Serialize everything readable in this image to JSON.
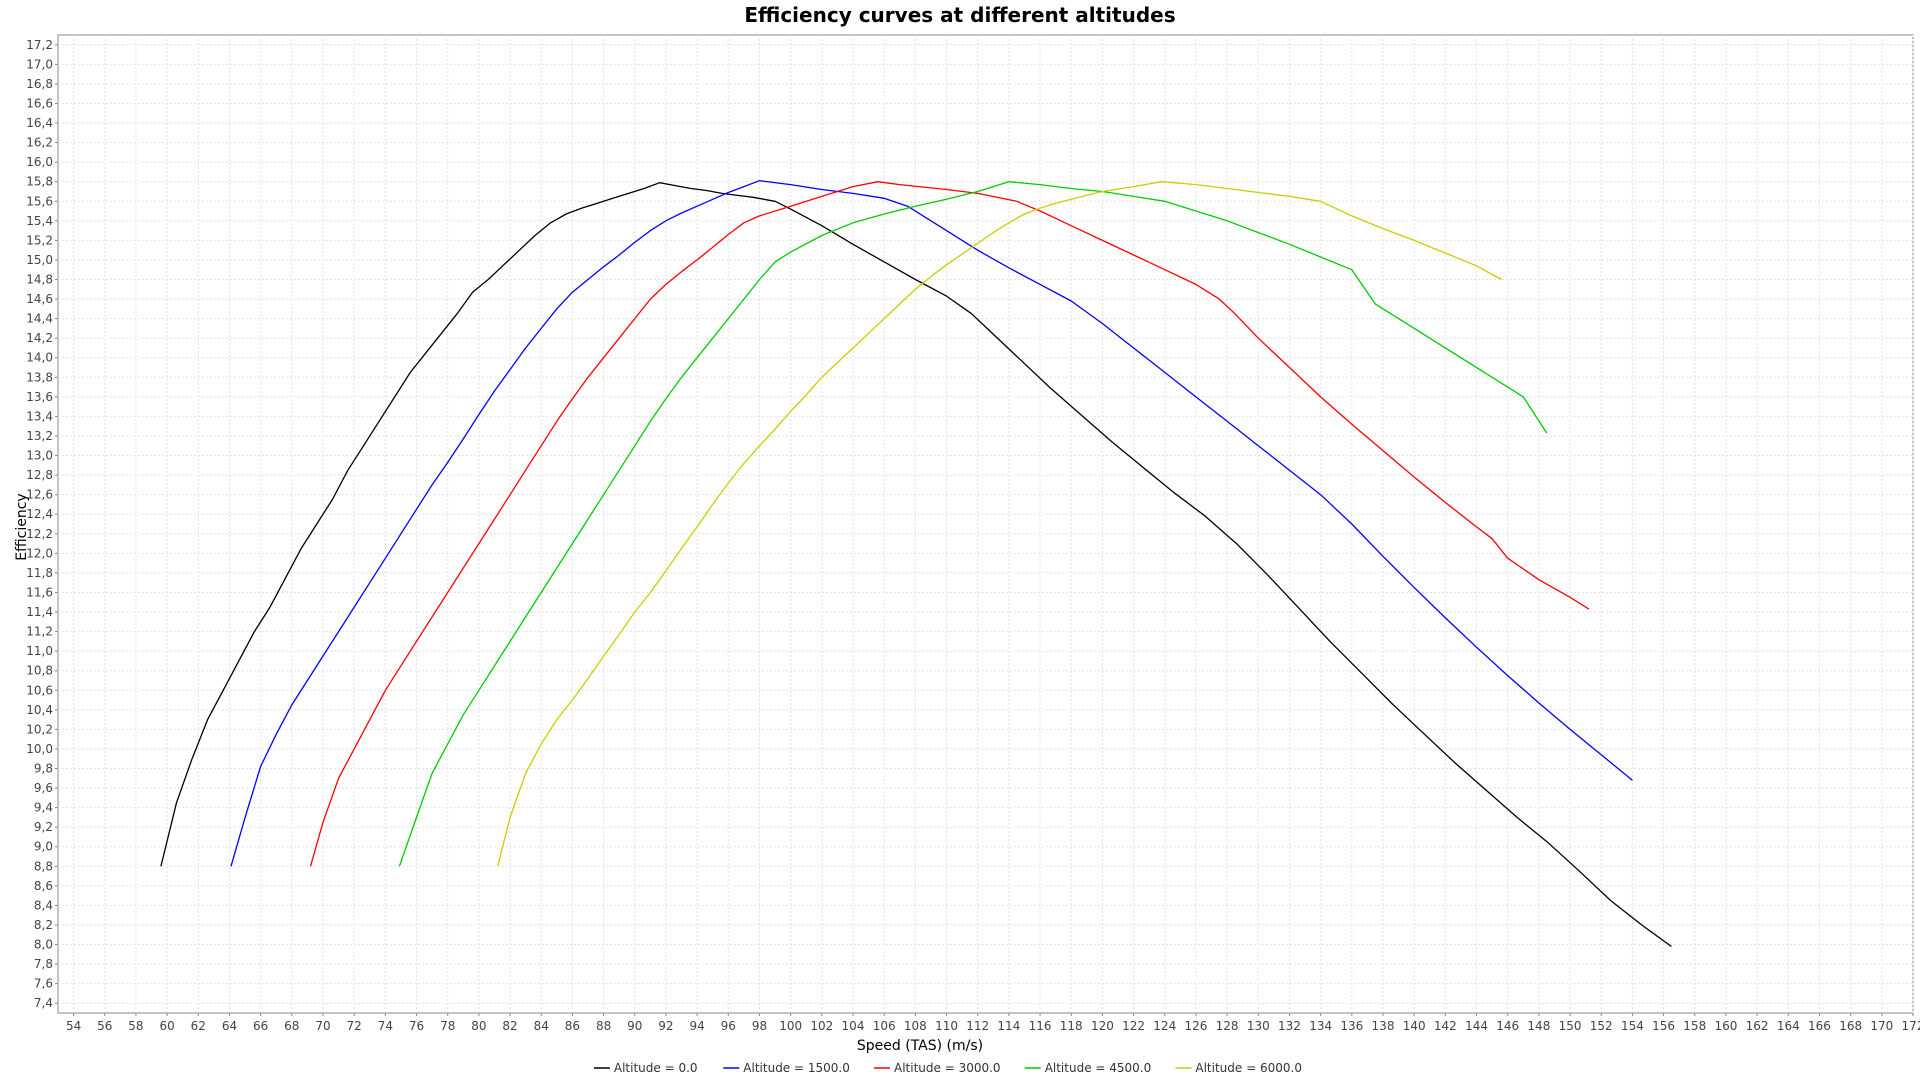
{
  "chart_data": {
    "type": "line",
    "title": "Efficiency curves at different altitudes",
    "xlabel": "Speed (TAS) (m/s)",
    "ylabel": "Efficiency",
    "xlim": [
      53,
      172
    ],
    "ylim": [
      7.3,
      17.3
    ],
    "x_tick_start": 54,
    "x_tick_end": 172,
    "x_tick_step": 2,
    "y_tick_start": 7.4,
    "y_tick_end": 17.2,
    "y_tick_step": 0.2,
    "decimal_separator": ",",
    "grid": true,
    "legend_position": "bottom-center",
    "series": [
      {
        "name": "Altitude = 0.0",
        "color": "#000000",
        "points": [
          [
            59.6,
            8.8
          ],
          [
            60.6,
            9.45
          ],
          [
            61.6,
            9.9
          ],
          [
            62.6,
            10.3
          ],
          [
            63.6,
            10.6
          ],
          [
            64.6,
            10.9
          ],
          [
            65.6,
            11.2
          ],
          [
            66.6,
            11.45
          ],
          [
            67.6,
            11.75
          ],
          [
            68.6,
            12.05
          ],
          [
            69.6,
            12.3
          ],
          [
            70.6,
            12.55
          ],
          [
            71.6,
            12.85
          ],
          [
            72.6,
            13.1
          ],
          [
            73.6,
            13.35
          ],
          [
            74.6,
            13.6
          ],
          [
            75.6,
            13.85
          ],
          [
            76.6,
            14.05
          ],
          [
            77.6,
            14.25
          ],
          [
            78.6,
            14.45
          ],
          [
            79.6,
            14.67
          ],
          [
            80.6,
            14.8
          ],
          [
            81.6,
            14.95
          ],
          [
            82.6,
            15.1
          ],
          [
            83.6,
            15.25
          ],
          [
            84.6,
            15.38
          ],
          [
            85.6,
            15.47
          ],
          [
            86.6,
            15.53
          ],
          [
            87.6,
            15.58
          ],
          [
            88.6,
            15.63
          ],
          [
            89.6,
            15.68
          ],
          [
            90.6,
            15.73
          ],
          [
            91.6,
            15.79
          ],
          [
            92.6,
            15.76
          ],
          [
            93.6,
            15.73
          ],
          [
            94.6,
            15.71
          ],
          [
            95.6,
            15.68
          ],
          [
            96.6,
            15.66
          ],
          [
            97.6,
            15.64
          ],
          [
            99.0,
            15.6
          ],
          [
            100.0,
            15.52
          ],
          [
            102.0,
            15.35
          ],
          [
            104.0,
            15.16
          ],
          [
            106.0,
            14.98
          ],
          [
            108.0,
            14.8
          ],
          [
            110.0,
            14.63
          ],
          [
            111.6,
            14.45
          ],
          [
            112.6,
            14.3
          ],
          [
            114.6,
            14.0
          ],
          [
            116.6,
            13.7
          ],
          [
            118.6,
            13.42
          ],
          [
            120.6,
            13.14
          ],
          [
            122.6,
            12.88
          ],
          [
            124.6,
            12.62
          ],
          [
            126.6,
            12.38
          ],
          [
            128.6,
            12.1
          ],
          [
            130.6,
            11.78
          ],
          [
            132.6,
            11.44
          ],
          [
            134.6,
            11.1
          ],
          [
            136.6,
            10.78
          ],
          [
            138.6,
            10.46
          ],
          [
            140.6,
            10.16
          ],
          [
            142.6,
            9.86
          ],
          [
            144.6,
            9.58
          ],
          [
            146.6,
            9.3
          ],
          [
            148.6,
            9.04
          ],
          [
            150.6,
            8.75
          ],
          [
            152.6,
            8.45
          ],
          [
            154.6,
            8.2
          ],
          [
            156.5,
            7.98
          ]
        ]
      },
      {
        "name": "Altitude = 1500.0",
        "color": "#0000ff",
        "points": [
          [
            64.1,
            8.8
          ],
          [
            65.0,
            9.3
          ],
          [
            66.0,
            9.82
          ],
          [
            67.0,
            10.15
          ],
          [
            68.0,
            10.45
          ],
          [
            69.0,
            10.7
          ],
          [
            70.0,
            10.95
          ],
          [
            71.0,
            11.2
          ],
          [
            72.0,
            11.45
          ],
          [
            73.0,
            11.7
          ],
          [
            74.0,
            11.95
          ],
          [
            75.0,
            12.2
          ],
          [
            76.0,
            12.45
          ],
          [
            77.0,
            12.7
          ],
          [
            78.0,
            12.93
          ],
          [
            79.0,
            13.17
          ],
          [
            80.0,
            13.42
          ],
          [
            81.0,
            13.66
          ],
          [
            82.0,
            13.88
          ],
          [
            83.0,
            14.1
          ],
          [
            84.0,
            14.3
          ],
          [
            85.0,
            14.5
          ],
          [
            86.0,
            14.67
          ],
          [
            87.0,
            14.8
          ],
          [
            88.0,
            14.93
          ],
          [
            89.0,
            15.05
          ],
          [
            90.0,
            15.18
          ],
          [
            91.0,
            15.3
          ],
          [
            92.0,
            15.4
          ],
          [
            93.0,
            15.48
          ],
          [
            94.0,
            15.55
          ],
          [
            95.0,
            15.62
          ],
          [
            96.0,
            15.69
          ],
          [
            97.0,
            15.75
          ],
          [
            98.0,
            15.81
          ],
          [
            100.0,
            15.77
          ],
          [
            102.0,
            15.72
          ],
          [
            104.0,
            15.68
          ],
          [
            106.0,
            15.63
          ],
          [
            107.5,
            15.55
          ],
          [
            108.5,
            15.45
          ],
          [
            110.0,
            15.3
          ],
          [
            112.0,
            15.1
          ],
          [
            114.0,
            14.92
          ],
          [
            116.0,
            14.75
          ],
          [
            118.0,
            14.58
          ],
          [
            120.0,
            14.35
          ],
          [
            122.0,
            14.1
          ],
          [
            124.0,
            13.85
          ],
          [
            126.0,
            13.6
          ],
          [
            128.0,
            13.35
          ],
          [
            130.0,
            13.1
          ],
          [
            132.0,
            12.85
          ],
          [
            134.0,
            12.6
          ],
          [
            136.0,
            12.3
          ],
          [
            138.0,
            11.97
          ],
          [
            140.0,
            11.65
          ],
          [
            142.0,
            11.34
          ],
          [
            144.0,
            11.04
          ],
          [
            146.0,
            10.75
          ],
          [
            148.0,
            10.47
          ],
          [
            150.0,
            10.2
          ],
          [
            152.0,
            9.94
          ],
          [
            154.0,
            9.68
          ]
        ]
      },
      {
        "name": "Altitude = 3000.0",
        "color": "#ff0000",
        "points": [
          [
            69.2,
            8.8
          ],
          [
            70.0,
            9.25
          ],
          [
            71.0,
            9.7
          ],
          [
            72.0,
            10.0
          ],
          [
            73.0,
            10.3
          ],
          [
            74.0,
            10.6
          ],
          [
            75.0,
            10.85
          ],
          [
            76.0,
            11.1
          ],
          [
            77.0,
            11.35
          ],
          [
            78.0,
            11.6
          ],
          [
            79.0,
            11.85
          ],
          [
            80.0,
            12.1
          ],
          [
            81.0,
            12.35
          ],
          [
            82.0,
            12.6
          ],
          [
            83.0,
            12.85
          ],
          [
            84.0,
            13.1
          ],
          [
            85.0,
            13.35
          ],
          [
            86.0,
            13.58
          ],
          [
            87.0,
            13.8
          ],
          [
            88.0,
            14.0
          ],
          [
            89.0,
            14.2
          ],
          [
            90.0,
            14.4
          ],
          [
            91.0,
            14.6
          ],
          [
            92.0,
            14.75
          ],
          [
            93.0,
            14.88
          ],
          [
            94.0,
            15.0
          ],
          [
            95.0,
            15.13
          ],
          [
            96.0,
            15.26
          ],
          [
            97.0,
            15.38
          ],
          [
            98.0,
            15.45
          ],
          [
            100.0,
            15.55
          ],
          [
            102.0,
            15.65
          ],
          [
            104.0,
            15.75
          ],
          [
            105.6,
            15.8
          ],
          [
            107.0,
            15.77
          ],
          [
            110.0,
            15.72
          ],
          [
            112.0,
            15.68
          ],
          [
            114.5,
            15.6
          ],
          [
            116.0,
            15.5
          ],
          [
            118.0,
            15.35
          ],
          [
            120.0,
            15.2
          ],
          [
            122.0,
            15.05
          ],
          [
            124.0,
            14.9
          ],
          [
            126.0,
            14.75
          ],
          [
            127.5,
            14.6
          ],
          [
            128.5,
            14.45
          ],
          [
            130.0,
            14.2
          ],
          [
            132.0,
            13.9
          ],
          [
            134.0,
            13.6
          ],
          [
            136.0,
            13.32
          ],
          [
            138.0,
            13.05
          ],
          [
            140.0,
            12.78
          ],
          [
            142.0,
            12.52
          ],
          [
            144.0,
            12.27
          ],
          [
            145.0,
            12.15
          ],
          [
            146.0,
            11.95
          ],
          [
            148.0,
            11.73
          ],
          [
            150.0,
            11.55
          ],
          [
            151.2,
            11.43
          ]
        ]
      },
      {
        "name": "Altitude = 4500.0",
        "color": "#00cc00",
        "points": [
          [
            74.9,
            8.8
          ],
          [
            76.0,
            9.3
          ],
          [
            77.0,
            9.75
          ],
          [
            78.0,
            10.05
          ],
          [
            79.0,
            10.35
          ],
          [
            80.0,
            10.6
          ],
          [
            81.0,
            10.85
          ],
          [
            82.0,
            11.1
          ],
          [
            83.0,
            11.35
          ],
          [
            84.0,
            11.6
          ],
          [
            85.0,
            11.85
          ],
          [
            86.0,
            12.1
          ],
          [
            87.0,
            12.35
          ],
          [
            88.0,
            12.6
          ],
          [
            89.0,
            12.85
          ],
          [
            90.0,
            13.1
          ],
          [
            91.0,
            13.35
          ],
          [
            92.0,
            13.58
          ],
          [
            93.0,
            13.8
          ],
          [
            94.0,
            14.0
          ],
          [
            95.0,
            14.2
          ],
          [
            96.0,
            14.4
          ],
          [
            97.0,
            14.6
          ],
          [
            98.0,
            14.8
          ],
          [
            99.0,
            14.98
          ],
          [
            100.0,
            15.08
          ],
          [
            102.0,
            15.25
          ],
          [
            104.0,
            15.38
          ],
          [
            106.0,
            15.47
          ],
          [
            108.0,
            15.55
          ],
          [
            110.0,
            15.62
          ],
          [
            112.0,
            15.7
          ],
          [
            114.0,
            15.8
          ],
          [
            116.0,
            15.77
          ],
          [
            118.0,
            15.73
          ],
          [
            120.0,
            15.7
          ],
          [
            122.0,
            15.65
          ],
          [
            124.0,
            15.6
          ],
          [
            126.0,
            15.5
          ],
          [
            128.0,
            15.4
          ],
          [
            130.0,
            15.28
          ],
          [
            132.0,
            15.16
          ],
          [
            134.0,
            15.03
          ],
          [
            136.0,
            14.9
          ],
          [
            137.5,
            14.55
          ],
          [
            139.0,
            14.4
          ],
          [
            141.0,
            14.2
          ],
          [
            143.0,
            14.0
          ],
          [
            145.0,
            13.8
          ],
          [
            147.0,
            13.6
          ],
          [
            148.5,
            13.23
          ]
        ]
      },
      {
        "name": "Altitude = 6000.0",
        "color": "#cccc00",
        "points": [
          [
            81.2,
            8.8
          ],
          [
            82.0,
            9.3
          ],
          [
            83.0,
            9.75
          ],
          [
            84.0,
            10.05
          ],
          [
            85.0,
            10.3
          ],
          [
            86.0,
            10.5
          ],
          [
            87.0,
            10.72
          ],
          [
            88.0,
            10.95
          ],
          [
            89.0,
            11.17
          ],
          [
            90.0,
            11.4
          ],
          [
            91.0,
            11.6
          ],
          [
            92.0,
            11.82
          ],
          [
            93.0,
            12.05
          ],
          [
            94.0,
            12.27
          ],
          [
            95.0,
            12.5
          ],
          [
            96.0,
            12.72
          ],
          [
            97.0,
            12.92
          ],
          [
            98.0,
            13.1
          ],
          [
            99.0,
            13.27
          ],
          [
            100.0,
            13.45
          ],
          [
            101.0,
            13.62
          ],
          [
            102.0,
            13.8
          ],
          [
            103.0,
            13.95
          ],
          [
            104.0,
            14.1
          ],
          [
            105.0,
            14.25
          ],
          [
            106.0,
            14.4
          ],
          [
            107.0,
            14.55
          ],
          [
            108.0,
            14.7
          ],
          [
            109.0,
            14.83
          ],
          [
            110.0,
            14.95
          ],
          [
            111.0,
            15.06
          ],
          [
            112.0,
            15.17
          ],
          [
            113.0,
            15.28
          ],
          [
            114.0,
            15.38
          ],
          [
            115.0,
            15.47
          ],
          [
            116.0,
            15.53
          ],
          [
            117.0,
            15.58
          ],
          [
            118.0,
            15.62
          ],
          [
            120.0,
            15.7
          ],
          [
            122.0,
            15.75
          ],
          [
            123.8,
            15.8
          ],
          [
            126.0,
            15.77
          ],
          [
            128.0,
            15.73
          ],
          [
            130.0,
            15.69
          ],
          [
            132.0,
            15.65
          ],
          [
            134.0,
            15.6
          ],
          [
            136.0,
            15.45
          ],
          [
            138.0,
            15.32
          ],
          [
            140.0,
            15.2
          ],
          [
            142.0,
            15.07
          ],
          [
            144.0,
            14.94
          ],
          [
            145.6,
            14.8
          ]
        ]
      }
    ]
  }
}
